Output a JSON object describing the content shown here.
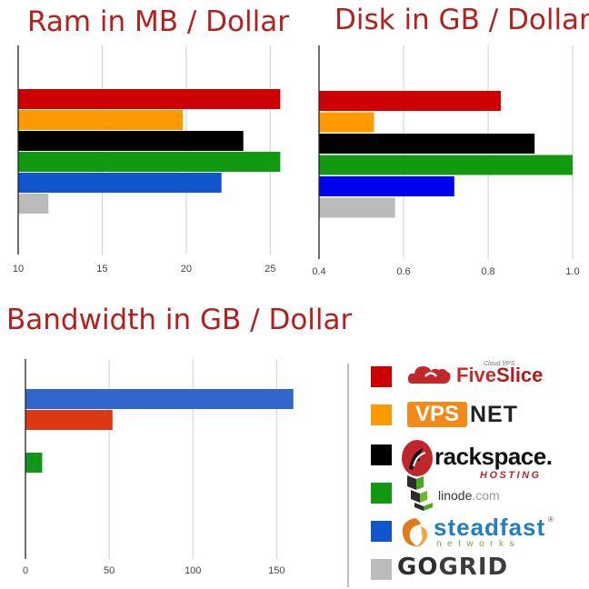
{
  "chart_data": [
    {
      "type": "bar",
      "title": "Ram in MB / Dollar",
      "categories": [
        "FiveSlice",
        "VPS.NET",
        "rackspace",
        "linode",
        "steadfast",
        "GoGrid"
      ],
      "values": [
        25.6,
        19.8,
        23.4,
        25.6,
        22.1,
        11.8
      ],
      "colors": [
        "#cc0000",
        "#ff9900",
        "#000000",
        "#119911",
        "#1155cc",
        "#bbbbbb"
      ],
      "xlim": [
        10,
        26.5
      ],
      "xticks": [
        10,
        15,
        20,
        25
      ],
      "tick_labels": [
        "10",
        "15",
        "20",
        "25"
      ],
      "grid": true
    },
    {
      "type": "bar",
      "title": "Disk in GB / Dollar",
      "categories": [
        "FiveSlice",
        "VPS.NET",
        "rackspace",
        "linode",
        "steadfast",
        "GoGrid"
      ],
      "values": [
        0.83,
        0.53,
        0.91,
        1.0,
        0.72,
        0.58
      ],
      "colors": [
        "#cc0000",
        "#ff9900",
        "#000000",
        "#119911",
        "#0000ee",
        "#bbbbbb"
      ],
      "xlim": [
        0.4,
        1.0
      ],
      "xticks": [
        0.4,
        0.6,
        0.8,
        1.0
      ],
      "tick_labels": [
        "0.4",
        "0.6",
        "0.8",
        "1.0"
      ],
      "grid": true
    },
    {
      "type": "bar",
      "title": "Bandwidth in GB / Dollar",
      "categories": [
        "steadfast",
        "FiveSlice",
        "linode"
      ],
      "values": [
        160,
        52,
        10
      ],
      "colors": [
        "#3366cc",
        "#dc3912",
        "#109618"
      ],
      "xlim": [
        0,
        165
      ],
      "xticks": [
        0,
        50,
        100,
        150
      ],
      "tick_labels": [
        "0",
        "50",
        "100",
        "150"
      ],
      "grid": true
    }
  ],
  "legend": {
    "placement": "bottom-right",
    "items": [
      {
        "name": "FiveSlice",
        "color": "#cc0000",
        "tagline": "Cloud VPS",
        "text_a": "Five",
        "text_b": "Slice"
      },
      {
        "name": "VPS.NET",
        "color": "#ff9900",
        "text_a": "VPS",
        "text_b": "NET"
      },
      {
        "name": "rackspace",
        "color": "#000000",
        "text_a": "rackspace.",
        "text_b": "HOSTING"
      },
      {
        "name": "linode",
        "color": "#119911",
        "text_a": "linode",
        "text_b": ".com"
      },
      {
        "name": "steadfast",
        "color": "#1155cc",
        "text_a": "steadfast",
        "text_b": "networks",
        "mark": "®"
      },
      {
        "name": "GoGrid",
        "color": "#bbbbbb",
        "text_a": "GO",
        "text_b": "GRID"
      }
    ]
  }
}
